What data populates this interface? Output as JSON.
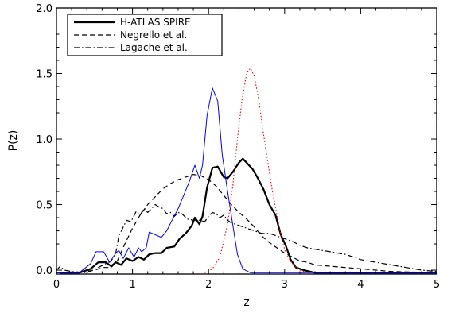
{
  "chart_data": {
    "type": "line",
    "title": "",
    "xlabel": "z",
    "ylabel": "P(z)",
    "xlim": [
      0,
      5
    ],
    "ylim": [
      -0.03,
      2.0
    ],
    "x_ticks": [
      0,
      1,
      2,
      3,
      4,
      5
    ],
    "x_tick_labels": [
      "0",
      "1",
      "2",
      "3",
      "4",
      "5"
    ],
    "y_ticks": [
      0.0,
      0.5,
      1.0,
      1.5,
      2.0
    ],
    "y_tick_labels": [
      "0.0",
      "0.5",
      "1.0",
      "1.5",
      "2.0"
    ],
    "grid": false,
    "legend": {
      "position": "top-left",
      "entries": [
        "H-ATLAS SPIRE",
        "Negrello et al.",
        "Lagache et al."
      ]
    },
    "series": [
      {
        "name": "H-ATLAS SPIRE",
        "color": "#000000",
        "style": "solid-thick",
        "points": [
          [
            0.05,
            -0.02
          ],
          [
            0.3,
            -0.02
          ],
          [
            0.45,
            0.01
          ],
          [
            0.55,
            0.06
          ],
          [
            0.65,
            0.06
          ],
          [
            0.72,
            0.03
          ],
          [
            0.78,
            0.06
          ],
          [
            0.85,
            0.04
          ],
          [
            0.92,
            0.09
          ],
          [
            1.0,
            0.07
          ],
          [
            1.08,
            0.1
          ],
          [
            1.15,
            0.08
          ],
          [
            1.22,
            0.12
          ],
          [
            1.3,
            0.13
          ],
          [
            1.38,
            0.13
          ],
          [
            1.45,
            0.17
          ],
          [
            1.55,
            0.18
          ],
          [
            1.62,
            0.24
          ],
          [
            1.7,
            0.28
          ],
          [
            1.78,
            0.34
          ],
          [
            1.82,
            0.4
          ],
          [
            1.88,
            0.35
          ],
          [
            1.92,
            0.41
          ],
          [
            1.98,
            0.63
          ],
          [
            2.05,
            0.78
          ],
          [
            2.12,
            0.79
          ],
          [
            2.2,
            0.71
          ],
          [
            2.25,
            0.7
          ],
          [
            2.32,
            0.75
          ],
          [
            2.4,
            0.82
          ],
          [
            2.45,
            0.85
          ],
          [
            2.5,
            0.82
          ],
          [
            2.58,
            0.77
          ],
          [
            2.65,
            0.7
          ],
          [
            2.72,
            0.62
          ],
          [
            2.8,
            0.5
          ],
          [
            2.88,
            0.42
          ],
          [
            2.95,
            0.27
          ],
          [
            3.02,
            0.18
          ],
          [
            3.08,
            0.08
          ],
          [
            3.15,
            0.02
          ],
          [
            3.25,
            0.0
          ],
          [
            3.4,
            -0.02
          ],
          [
            5.0,
            -0.02
          ]
        ]
      },
      {
        "name": "Negrello et al.",
        "color": "#000000",
        "style": "dashed",
        "points": [
          [
            0.0,
            -0.02
          ],
          [
            0.3,
            -0.02
          ],
          [
            0.5,
            0.0
          ],
          [
            0.62,
            0.02
          ],
          [
            0.72,
            0.02
          ],
          [
            0.8,
            0.07
          ],
          [
            0.9,
            0.2
          ],
          [
            1.0,
            0.32
          ],
          [
            1.1,
            0.42
          ],
          [
            1.2,
            0.5
          ],
          [
            1.3,
            0.56
          ],
          [
            1.4,
            0.62
          ],
          [
            1.5,
            0.66
          ],
          [
            1.6,
            0.69
          ],
          [
            1.7,
            0.71
          ],
          [
            1.8,
            0.73
          ],
          [
            1.9,
            0.72
          ],
          [
            2.0,
            0.69
          ],
          [
            2.1,
            0.64
          ],
          [
            2.2,
            0.57
          ],
          [
            2.3,
            0.5
          ],
          [
            2.4,
            0.44
          ],
          [
            2.5,
            0.39
          ],
          [
            2.6,
            0.33
          ],
          [
            2.7,
            0.26
          ],
          [
            2.8,
            0.21
          ],
          [
            2.9,
            0.17
          ],
          [
            3.0,
            0.13
          ],
          [
            3.1,
            0.1
          ],
          [
            3.2,
            0.07
          ],
          [
            3.3,
            0.06
          ],
          [
            3.4,
            0.04
          ],
          [
            3.6,
            0.03
          ],
          [
            3.8,
            0.02
          ],
          [
            4.0,
            0.01
          ],
          [
            4.2,
            0.0
          ],
          [
            4.4,
            -0.01
          ],
          [
            5.0,
            -0.02
          ]
        ]
      },
      {
        "name": "Lagache et al.",
        "color": "#000000",
        "style": "dash-dot",
        "points": [
          [
            0.0,
            0.0
          ],
          [
            0.05,
            0.03
          ],
          [
            0.1,
            0.0
          ],
          [
            0.2,
            -0.01
          ],
          [
            0.4,
            -0.02
          ],
          [
            0.55,
            0.02
          ],
          [
            0.65,
            0.05
          ],
          [
            0.72,
            0.07
          ],
          [
            0.78,
            0.13
          ],
          [
            0.82,
            0.26
          ],
          [
            0.88,
            0.33
          ],
          [
            0.92,
            0.38
          ],
          [
            0.98,
            0.37
          ],
          [
            1.05,
            0.45
          ],
          [
            1.1,
            0.42
          ],
          [
            1.15,
            0.47
          ],
          [
            1.2,
            0.44
          ],
          [
            1.25,
            0.47
          ],
          [
            1.3,
            0.5
          ],
          [
            1.35,
            0.48
          ],
          [
            1.4,
            0.47
          ],
          [
            1.45,
            0.43
          ],
          [
            1.5,
            0.44
          ],
          [
            1.55,
            0.41
          ],
          [
            1.6,
            0.44
          ],
          [
            1.65,
            0.43
          ],
          [
            1.72,
            0.39
          ],
          [
            1.8,
            0.38
          ],
          [
            1.88,
            0.38
          ],
          [
            1.95,
            0.37
          ],
          [
            2.0,
            0.41
          ],
          [
            2.05,
            0.44
          ],
          [
            2.1,
            0.43
          ],
          [
            2.15,
            0.4
          ],
          [
            2.2,
            0.42
          ],
          [
            2.25,
            0.38
          ],
          [
            2.3,
            0.36
          ],
          [
            2.4,
            0.34
          ],
          [
            2.5,
            0.32
          ],
          [
            2.6,
            0.3
          ],
          [
            2.7,
            0.28
          ],
          [
            2.8,
            0.28
          ],
          [
            2.9,
            0.26
          ],
          [
            3.0,
            0.24
          ],
          [
            3.1,
            0.22
          ],
          [
            3.2,
            0.19
          ],
          [
            3.3,
            0.17
          ],
          [
            3.4,
            0.16
          ],
          [
            3.5,
            0.15
          ],
          [
            3.6,
            0.14
          ],
          [
            3.7,
            0.13
          ],
          [
            3.8,
            0.12
          ],
          [
            3.9,
            0.1
          ],
          [
            4.0,
            0.08
          ],
          [
            4.1,
            0.07
          ],
          [
            4.2,
            0.06
          ],
          [
            4.3,
            0.05
          ],
          [
            4.4,
            0.04
          ],
          [
            4.5,
            0.03
          ],
          [
            4.6,
            0.02
          ],
          [
            4.8,
            0.0
          ],
          [
            5.0,
            -0.01
          ]
        ]
      },
      {
        "color": "#0000ff",
        "style": "solid-thin",
        "points": [
          [
            0.0,
            -0.02
          ],
          [
            0.3,
            -0.02
          ],
          [
            0.45,
            0.05
          ],
          [
            0.52,
            0.14
          ],
          [
            0.62,
            0.14
          ],
          [
            0.7,
            0.06
          ],
          [
            0.78,
            0.13
          ],
          [
            0.82,
            0.15
          ],
          [
            0.88,
            0.09
          ],
          [
            0.95,
            0.17
          ],
          [
            1.02,
            0.1
          ],
          [
            1.08,
            0.17
          ],
          [
            1.12,
            0.14
          ],
          [
            1.18,
            0.17
          ],
          [
            1.22,
            0.29
          ],
          [
            1.3,
            0.27
          ],
          [
            1.38,
            0.25
          ],
          [
            1.45,
            0.3
          ],
          [
            1.52,
            0.38
          ],
          [
            1.6,
            0.47
          ],
          [
            1.68,
            0.58
          ],
          [
            1.75,
            0.68
          ],
          [
            1.82,
            0.8
          ],
          [
            1.88,
            0.7
          ],
          [
            1.92,
            0.8
          ],
          [
            1.98,
            1.18
          ],
          [
            2.05,
            1.39
          ],
          [
            2.12,
            1.29
          ],
          [
            2.18,
            0.88
          ],
          [
            2.25,
            0.6
          ],
          [
            2.32,
            0.34
          ],
          [
            2.38,
            0.12
          ],
          [
            2.45,
            0.01
          ],
          [
            2.55,
            -0.02
          ],
          [
            5.0,
            -0.02
          ]
        ]
      },
      {
        "color": "#ff0000",
        "style": "dotted",
        "points": [
          [
            1.95,
            -0.02
          ],
          [
            2.05,
            0.01
          ],
          [
            2.15,
            0.1
          ],
          [
            2.25,
            0.35
          ],
          [
            2.32,
            0.65
          ],
          [
            2.38,
            1.0
          ],
          [
            2.44,
            1.3
          ],
          [
            2.5,
            1.5
          ],
          [
            2.55,
            1.54
          ],
          [
            2.6,
            1.48
          ],
          [
            2.66,
            1.3
          ],
          [
            2.72,
            1.05
          ],
          [
            2.78,
            0.82
          ],
          [
            2.84,
            0.6
          ],
          [
            2.9,
            0.42
          ],
          [
            2.96,
            0.24
          ],
          [
            3.02,
            0.12
          ],
          [
            3.1,
            0.05
          ],
          [
            3.2,
            0.0
          ],
          [
            3.3,
            -0.02
          ]
        ]
      }
    ]
  }
}
